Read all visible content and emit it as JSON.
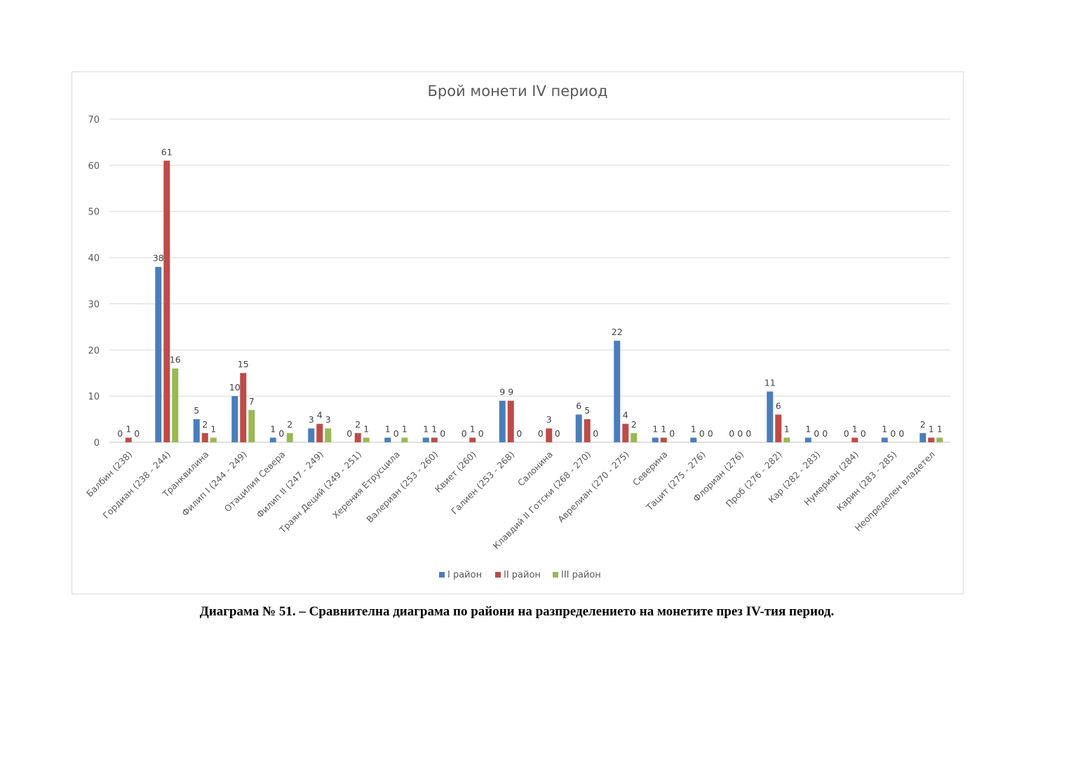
{
  "caption": "Диаграма № 51. – Сравнителна диаграма по райони на разпределението на монетите през IV-тия период.",
  "chart_data": {
    "type": "bar",
    "title": "Брой монети IV период",
    "xlabel": "",
    "ylabel": "",
    "ylim": [
      0,
      70
    ],
    "yticks": [
      0,
      10,
      20,
      30,
      40,
      50,
      60,
      70
    ],
    "grid": true,
    "legend_position": "bottom",
    "categories": [
      "Балбин (238)",
      "Гордиан (238 - 244)",
      "Транквилина",
      "Филип I (244 - 249)",
      "Отацилия Севера",
      "Филип II (247 - 249)",
      "Траян Деций (249 - 251)",
      "Херения Етрусцила",
      "Валериан (253 - 260)",
      "Квиет (260)",
      "Галиен (253 - 268)",
      "Салонина",
      "Клавдий II Готски (268 - 270)",
      "Аврелиан (270 - 275)",
      "Северина",
      "Тацит (275 - 276)",
      "Флориан (276)",
      "Проб (276 - 282)",
      "Кар (282 - 283)",
      "Нумериан (284)",
      "Карин (283 - 285)",
      "Неопределен владетел"
    ],
    "series": [
      {
        "name": "I район",
        "color": "#4a7ebb",
        "values": [
          0,
          38,
          5,
          10,
          1,
          3,
          0,
          1,
          1,
          0,
          9,
          0,
          6,
          22,
          1,
          1,
          0,
          11,
          1,
          0,
          1,
          2
        ]
      },
      {
        "name": "II район",
        "color": "#be4b48",
        "values": [
          1,
          61,
          2,
          15,
          0,
          4,
          2,
          0,
          1,
          1,
          9,
          3,
          5,
          4,
          1,
          0,
          0,
          6,
          0,
          1,
          0,
          1
        ]
      },
      {
        "name": "III район",
        "color": "#98b954",
        "values": [
          0,
          16,
          1,
          7,
          2,
          3,
          1,
          1,
          0,
          0,
          0,
          0,
          0,
          2,
          0,
          0,
          0,
          1,
          0,
          0,
          0,
          1
        ]
      }
    ]
  }
}
